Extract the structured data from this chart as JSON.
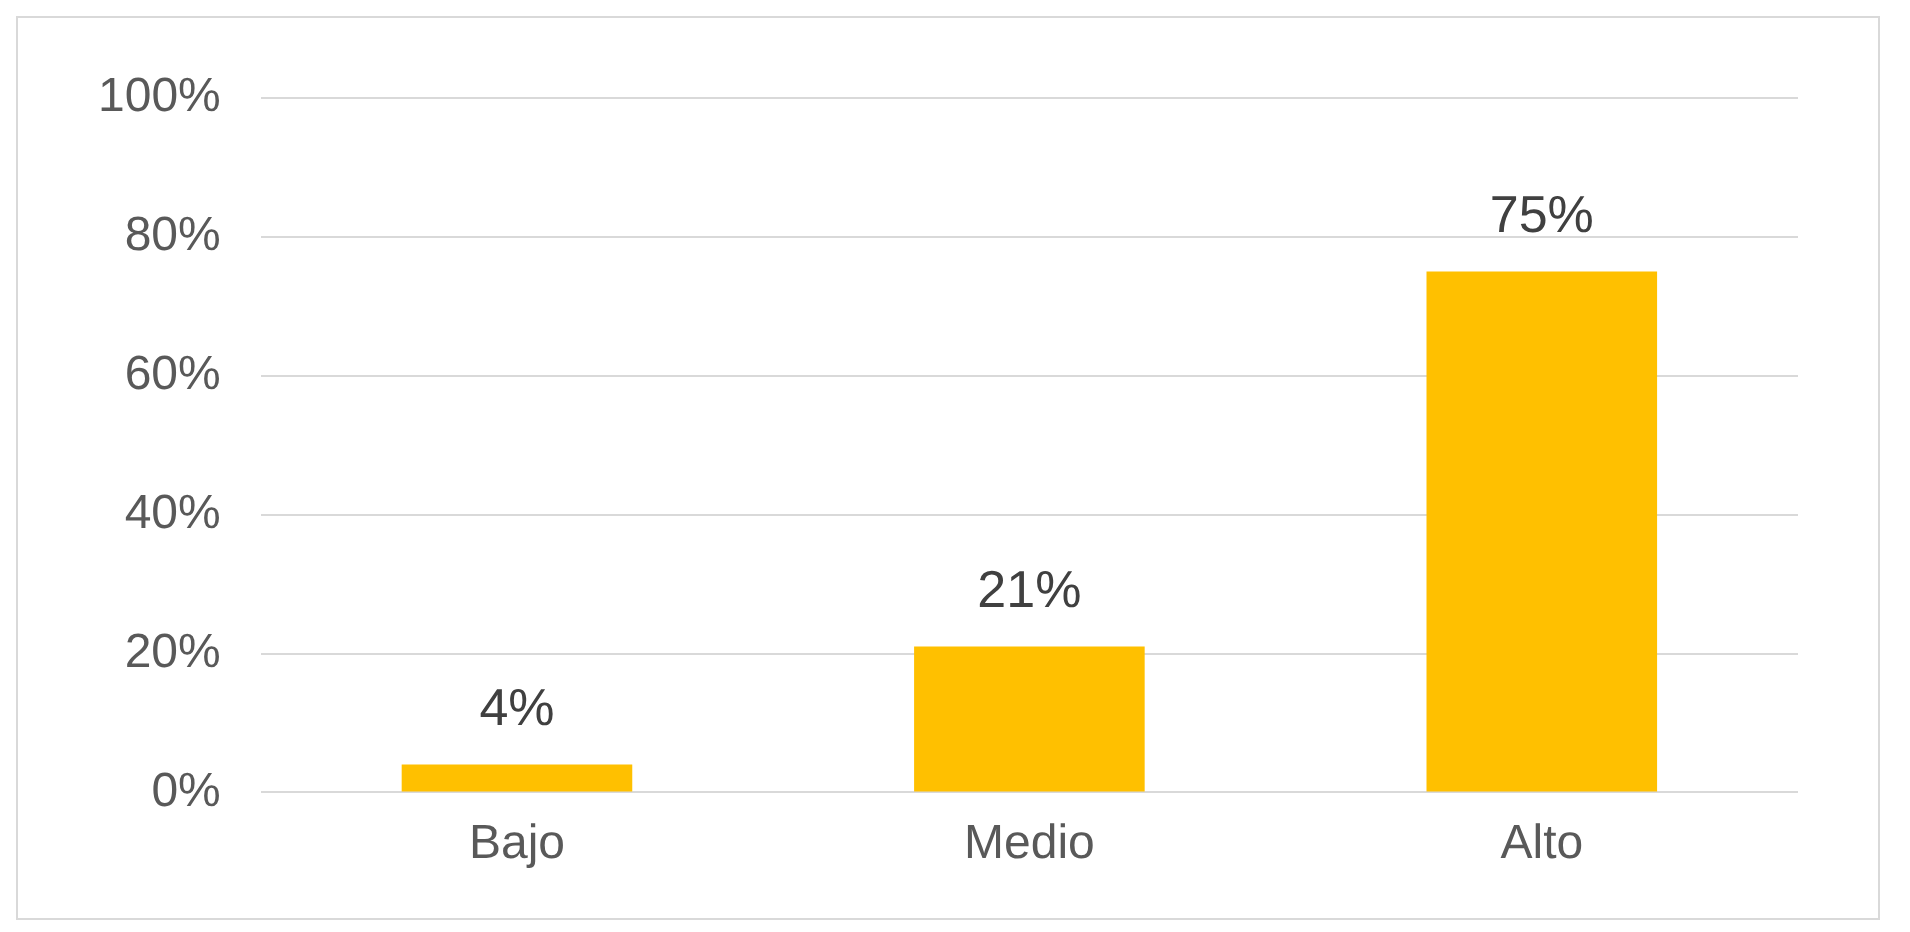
{
  "chart_data": {
    "type": "bar",
    "categories": [
      "Bajo",
      "Medio",
      "Alto"
    ],
    "values": [
      4,
      21,
      75
    ],
    "color": "#ffc000",
    "value_labels": [
      "4%",
      "21%",
      "75%"
    ],
    "ylim": [
      0,
      100
    ],
    "yticks": [
      {
        "value": 0,
        "label": "0%"
      },
      {
        "value": 20,
        "label": "20%"
      },
      {
        "value": 40,
        "label": "40%"
      },
      {
        "value": 60,
        "label": "60%"
      },
      {
        "value": 80,
        "label": "80%"
      },
      {
        "value": 100,
        "label": "100%"
      }
    ],
    "grid": "y",
    "legend": false
  }
}
